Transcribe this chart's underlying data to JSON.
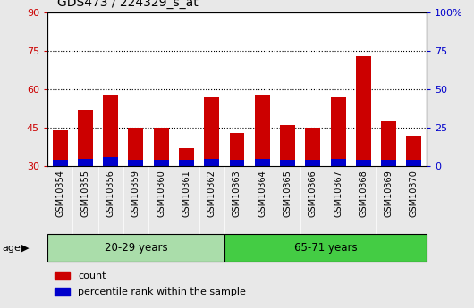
{
  "title": "GDS473 / 224329_s_at",
  "samples": [
    "GSM10354",
    "GSM10355",
    "GSM10356",
    "GSM10359",
    "GSM10360",
    "GSM10361",
    "GSM10362",
    "GSM10363",
    "GSM10364",
    "GSM10365",
    "GSM10366",
    "GSM10367",
    "GSM10368",
    "GSM10369",
    "GSM10370"
  ],
  "count_values": [
    44,
    52,
    58,
    45,
    45,
    37,
    57,
    43,
    58,
    46,
    45,
    57,
    73,
    48,
    42
  ],
  "percentile_values": [
    2.5,
    3.0,
    3.5,
    2.5,
    2.5,
    2.5,
    3.0,
    2.5,
    3.0,
    2.5,
    2.5,
    3.0,
    2.5,
    2.5,
    2.5
  ],
  "group1_label": "20-29 years",
  "group2_label": "65-71 years",
  "group1_count": 7,
  "group2_count": 8,
  "group1_color": "#aaddaa",
  "group2_color": "#44cc44",
  "age_label": "age",
  "left_axis_color": "#CC0000",
  "right_axis_color": "#0000CC",
  "bar_color_red": "#CC0000",
  "bar_color_blue": "#0000CC",
  "ylim_left": [
    30,
    90
  ],
  "ylim_right": [
    0,
    100
  ],
  "yticks_left": [
    30,
    45,
    60,
    75,
    90
  ],
  "yticks_right": [
    0,
    25,
    50,
    75,
    100
  ],
  "ytick_labels_right": [
    "0",
    "25",
    "50",
    "75",
    "100%"
  ],
  "legend_count": "count",
  "legend_pct": "percentile rank within the sample",
  "background_color": "#e8e8e8",
  "plot_bg_color": "#ffffff",
  "tick_label_bg": "#d8d8d8"
}
